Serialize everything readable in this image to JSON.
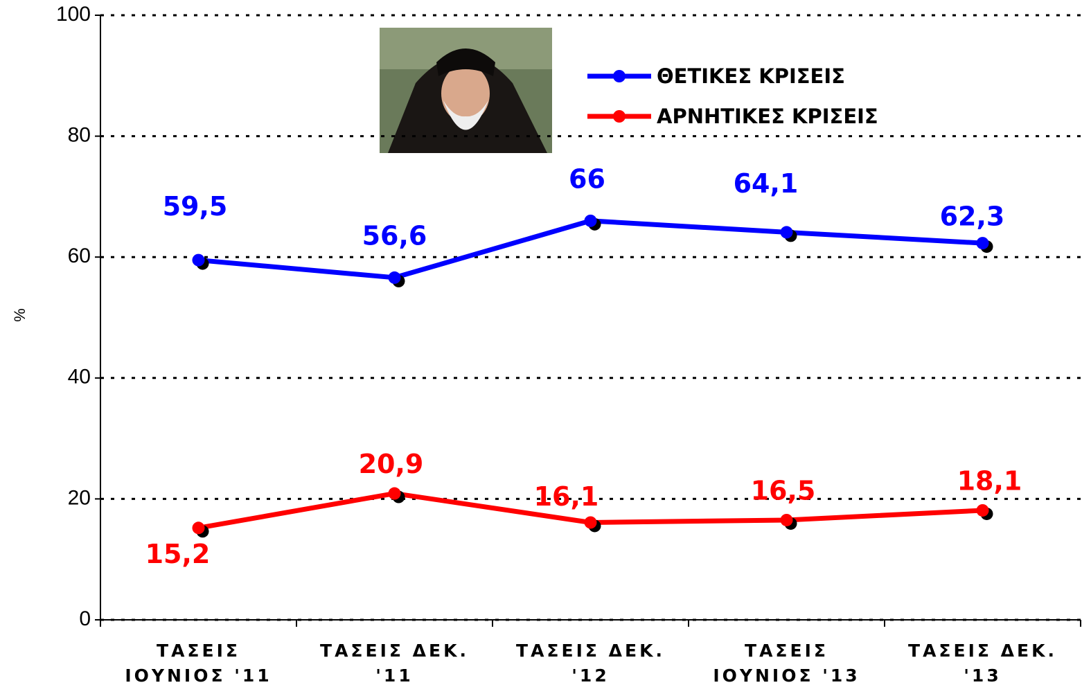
{
  "chart_data": {
    "type": "line",
    "categories": [
      "ΤΑΣΕΙΣ\nΙΟΥΝΙΟΣ '11",
      "ΤΑΣΕΙΣ ΔΕΚ.\n'11",
      "ΤΑΣΕΙΣ ΔΕΚ.\n'12",
      "ΤΑΣΕΙΣ\nΙΟΥΝΙΟΣ '13",
      "ΤΑΣΕΙΣ ΔΕΚ.\n'13"
    ],
    "y_label": "%",
    "series": [
      {
        "name": "ΘΕΤΙΚΕΣ ΚΡΙΣΕΙΣ",
        "color": "#0000ff",
        "values": [
          59.5,
          56.6,
          66,
          64.1,
          62.3
        ],
        "value_labels": [
          "59,5",
          "56,6",
          "66",
          "64,1",
          "62,3"
        ]
      },
      {
        "name": "ΑΡΝΗΤΙΚΕΣ ΚΡΙΣΕΙΣ",
        "color": "#ff0000",
        "values": [
          15.2,
          20.9,
          16.1,
          16.5,
          18.1
        ],
        "value_labels": [
          "15,2",
          "20,9",
          "16,1",
          "16,5",
          "18,1"
        ]
      }
    ],
    "ylim": [
      0,
      100
    ],
    "yticks": [
      0,
      20,
      40,
      60,
      80,
      100
    ],
    "grid": true,
    "legend": "top-right"
  }
}
